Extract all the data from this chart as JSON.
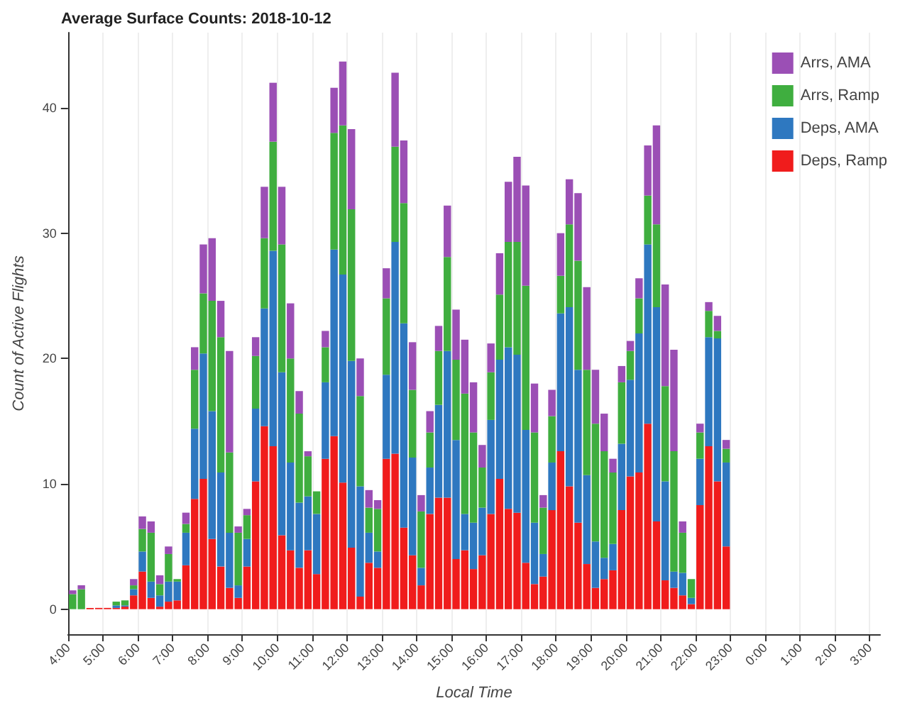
{
  "chart_data": {
    "type": "bar",
    "stacked": true,
    "title": "Average Surface Counts: 2018-10-12",
    "xlabel": "Local Time",
    "ylabel": "Count of Active Flights",
    "x": [
      "2018-10-12T04:08",
      "2018-10-12T04:23",
      "2018-10-12T04:38",
      "2018-10-12T04:53",
      "2018-10-12T05:08",
      "2018-10-12T05:23",
      "2018-10-12T05:38",
      "2018-10-12T05:53",
      "2018-10-12T06:08",
      "2018-10-12T06:23",
      "2018-10-12T06:38",
      "2018-10-12T06:53",
      "2018-10-12T07:08",
      "2018-10-12T07:23",
      "2018-10-12T07:38",
      "2018-10-12T07:53",
      "2018-10-12T08:08",
      "2018-10-12T08:23",
      "2018-10-12T08:38",
      "2018-10-12T08:53",
      "2018-10-12T09:08",
      "2018-10-12T09:23",
      "2018-10-12T09:38",
      "2018-10-12T09:53",
      "2018-10-12T10:08",
      "2018-10-12T10:23",
      "2018-10-12T10:38",
      "2018-10-12T10:53",
      "2018-10-12T11:08",
      "2018-10-12T11:23",
      "2018-10-12T11:38",
      "2018-10-12T11:53",
      "2018-10-12T12:08",
      "2018-10-12T12:23",
      "2018-10-12T12:38",
      "2018-10-12T12:53",
      "2018-10-12T13:08",
      "2018-10-12T13:23",
      "2018-10-12T13:38",
      "2018-10-12T13:53",
      "2018-10-12T14:08",
      "2018-10-12T14:23",
      "2018-10-12T14:38",
      "2018-10-12T14:53",
      "2018-10-12T15:08",
      "2018-10-12T15:23",
      "2018-10-12T15:38",
      "2018-10-12T15:53",
      "2018-10-12T16:08",
      "2018-10-12T16:23",
      "2018-10-12T16:38",
      "2018-10-12T16:53",
      "2018-10-12T17:08",
      "2018-10-12T17:23",
      "2018-10-12T17:38",
      "2018-10-12T17:53",
      "2018-10-12T18:08",
      "2018-10-12T18:23",
      "2018-10-12T18:38",
      "2018-10-12T18:53",
      "2018-10-12T19:08",
      "2018-10-12T19:23",
      "2018-10-12T19:38",
      "2018-10-12T19:53",
      "2018-10-12T20:08",
      "2018-10-12T20:23",
      "2018-10-12T20:38",
      "2018-10-12T20:53",
      "2018-10-12T21:08",
      "2018-10-12T21:23",
      "2018-10-12T21:38",
      "2018-10-12T21:53",
      "2018-10-12T22:08",
      "2018-10-12T22:23",
      "2018-10-12T22:38",
      "2018-10-12T22:53"
    ],
    "series": [
      {
        "name": "Deps, Ramp",
        "color": "#f01c1c",
        "values": [
          0,
          0,
          0.1,
          0.1,
          0.1,
          0.1,
          0.2,
          1.1,
          3.0,
          0.9,
          0.2,
          0.6,
          0.7,
          3.5,
          8.8,
          10.4,
          5.6,
          3.4,
          1.7,
          0.9,
          3.4,
          10.2,
          14.6,
          13.0,
          5.9,
          4.7,
          3.3,
          4.7,
          2.8,
          12.0,
          13.8,
          10.1,
          4.9,
          1.0,
          3.7,
          3.3,
          12.0,
          12.4,
          6.5,
          4.3,
          1.9,
          7.6,
          8.9,
          8.9,
          4.0,
          4.7,
          3.2,
          4.3,
          7.6,
          10.4,
          8.0,
          7.7,
          3.7,
          2.0,
          2.6,
          7.9,
          12.6,
          9.8,
          6.9,
          3.6,
          1.7,
          2.4,
          3.1,
          7.9,
          10.6,
          10.9,
          14.8,
          7.0,
          2.3,
          1.7,
          1.1,
          0.4,
          8.3,
          13.0,
          10.2,
          5.0
        ]
      },
      {
        "name": "Deps, AMA",
        "color": "#2e78c0",
        "values": [
          0,
          0,
          0,
          0,
          0,
          0.2,
          0.1,
          0.5,
          1.6,
          1.3,
          0.9,
          1.6,
          1.5,
          2.6,
          5.6,
          10.0,
          10.2,
          7.5,
          4.4,
          1.0,
          2.2,
          5.8,
          9.4,
          15.6,
          13.0,
          7.0,
          5.2,
          4.3,
          4.8,
          6.1,
          14.9,
          16.6,
          14.9,
          8.8,
          2.4,
          1.3,
          6.7,
          16.9,
          16.3,
          7.8,
          1.4,
          3.7,
          7.4,
          11.7,
          9.5,
          2.9,
          3.7,
          3.8,
          7.5,
          9.5,
          12.9,
          12.6,
          10.6,
          4.9,
          1.8,
          3.8,
          11.0,
          14.3,
          12.2,
          7.1,
          3.7,
          1.7,
          2.1,
          5.3,
          7.7,
          11.1,
          14.3,
          17.1,
          7.9,
          1.3,
          1.8,
          0.5,
          3.7,
          8.7,
          11.4,
          6.7
        ]
      },
      {
        "name": "Arrs, Ramp",
        "color": "#3fae3f",
        "values": [
          1.2,
          1.6,
          0,
          0,
          0,
          0.3,
          0.4,
          0.3,
          1.8,
          3.9,
          0.9,
          2.2,
          0.2,
          0.7,
          4.7,
          4.8,
          8.8,
          10.8,
          6.4,
          4.2,
          1.9,
          4.2,
          5.6,
          8.7,
          10.2,
          8.3,
          7.1,
          3.2,
          1.8,
          2.8,
          9.3,
          11.9,
          12.1,
          7.2,
          2.0,
          3.4,
          6.1,
          7.6,
          9.6,
          5.4,
          4.5,
          2.8,
          4.3,
          7.5,
          6.4,
          9.6,
          7.2,
          3.2,
          3.8,
          5.2,
          8.4,
          9.0,
          11.5,
          7.2,
          3.7,
          3.7,
          3.0,
          6.6,
          8.7,
          8.4,
          9.4,
          8.5,
          5.7,
          4.9,
          2.3,
          2.8,
          3.9,
          6.6,
          7.6,
          9.6,
          3.2,
          1.5,
          2.1,
          2.1,
          0.6,
          1.1
        ]
      },
      {
        "name": "Arrs, AMA",
        "color": "#9b4fb5",
        "values": [
          0.3,
          0.3,
          0,
          0,
          0,
          0,
          0,
          0.5,
          1.0,
          0.9,
          0.7,
          0.6,
          0,
          0.9,
          1.8,
          3.9,
          5.0,
          2.9,
          8.1,
          0.5,
          0.5,
          1.5,
          4.1,
          4.7,
          4.6,
          4.4,
          1.8,
          0.4,
          0,
          1.3,
          3.6,
          5.1,
          6.4,
          3.0,
          1.4,
          0.7,
          2.4,
          5.9,
          5.0,
          3.8,
          1.3,
          1.7,
          2.0,
          4.1,
          4.0,
          4.3,
          4.0,
          1.8,
          2.3,
          3.3,
          4.8,
          6.8,
          8.0,
          3.9,
          1.0,
          2.1,
          3.4,
          3.6,
          5.4,
          6.6,
          4.3,
          3.0,
          1.1,
          1.3,
          0.8,
          1.6,
          4.0,
          7.9,
          8.1,
          8.1,
          0.9,
          0,
          0.7,
          0.7,
          1.2,
          0.7
        ]
      }
    ],
    "xlim": [
      "2018-10-12T04:00",
      "2018-10-13T03:18"
    ],
    "xticks": [
      {
        "value": "2018-10-12T04:00",
        "label": "4:00"
      },
      {
        "value": "2018-10-12T05:00",
        "label": "5:00"
      },
      {
        "value": "2018-10-12T06:00",
        "label": "6:00"
      },
      {
        "value": "2018-10-12T07:00",
        "label": "7:00"
      },
      {
        "value": "2018-10-12T08:00",
        "label": "8:00"
      },
      {
        "value": "2018-10-12T09:00",
        "label": "9:00"
      },
      {
        "value": "2018-10-12T10:00",
        "label": "10:00"
      },
      {
        "value": "2018-10-12T11:00",
        "label": "11:00"
      },
      {
        "value": "2018-10-12T12:00",
        "label": "12:00"
      },
      {
        "value": "2018-10-12T13:00",
        "label": "13:00"
      },
      {
        "value": "2018-10-12T14:00",
        "label": "14:00"
      },
      {
        "value": "2018-10-12T15:00",
        "label": "15:00"
      },
      {
        "value": "2018-10-12T16:00",
        "label": "16:00"
      },
      {
        "value": "2018-10-12T17:00",
        "label": "17:00"
      },
      {
        "value": "2018-10-12T18:00",
        "label": "18:00"
      },
      {
        "value": "2018-10-12T19:00",
        "label": "19:00"
      },
      {
        "value": "2018-10-12T20:00",
        "label": "20:00"
      },
      {
        "value": "2018-10-12T21:00",
        "label": "21:00"
      },
      {
        "value": "2018-10-12T22:00",
        "label": "22:00"
      },
      {
        "value": "2018-10-12T23:00",
        "label": "23:00"
      },
      {
        "value": "2018-10-13T00:00",
        "label": "0:00"
      },
      {
        "value": "2018-10-13T01:00",
        "label": "1:00"
      },
      {
        "value": "2018-10-13T02:00",
        "label": "2:00"
      },
      {
        "value": "2018-10-13T03:00",
        "label": "3:00"
      }
    ],
    "ylim": [
      -2,
      46
    ],
    "yticks": [
      0,
      10,
      20,
      30,
      40
    ],
    "grid": "x",
    "legend": "top right"
  }
}
